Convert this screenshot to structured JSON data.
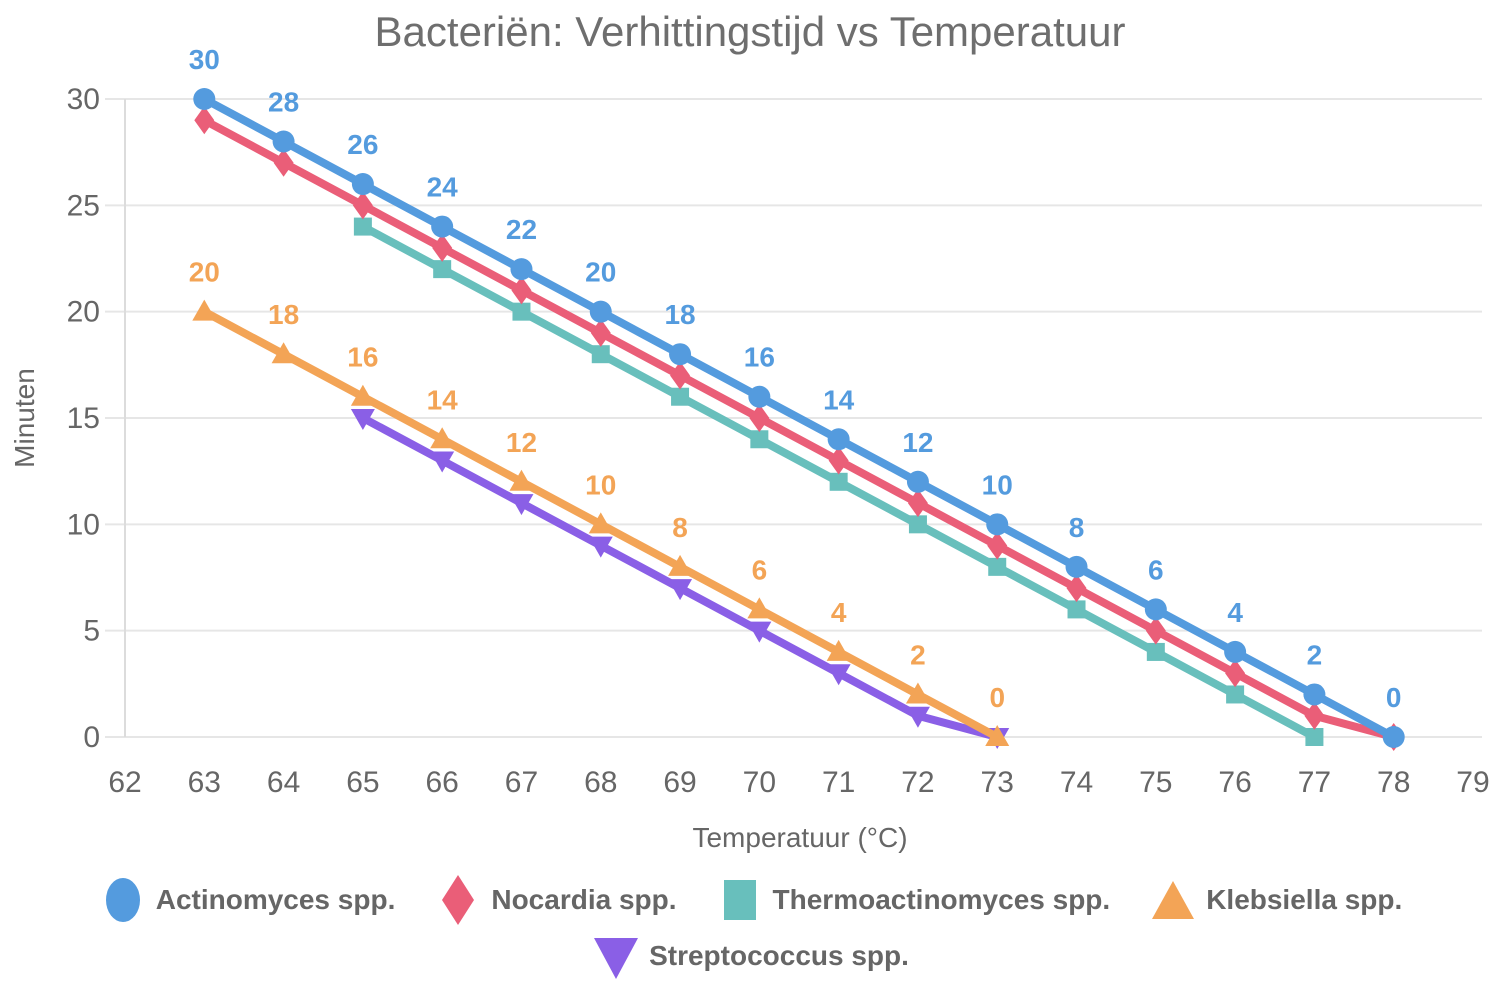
{
  "chart_data": {
    "type": "line",
    "title": "Bacteriën: Verhittingstijd vs Temperatuur",
    "xlabel": "Temperatuur (°C)",
    "ylabel": "Minuten",
    "xlim": [
      62,
      79
    ],
    "ylim": [
      0,
      30
    ],
    "x_ticks": [
      62,
      63,
      64,
      65,
      66,
      67,
      68,
      69,
      70,
      71,
      72,
      73,
      74,
      75,
      76,
      77,
      78,
      79
    ],
    "y_ticks": [
      0,
      5,
      10,
      15,
      20,
      25,
      30
    ],
    "grid": "horizontal",
    "legend_position": "bottom",
    "z_order": [
      2,
      4,
      3,
      1,
      0
    ],
    "series": [
      {
        "name": "Actinomyces spp.",
        "color": "#549BDE",
        "marker": "circle",
        "show_labels": true,
        "x": [
          63,
          64,
          65,
          66,
          67,
          68,
          69,
          70,
          71,
          72,
          73,
          74,
          75,
          76,
          77,
          78
        ],
        "values": [
          30,
          28,
          26,
          24,
          22,
          20,
          18,
          16,
          14,
          12,
          10,
          8,
          6,
          4,
          2,
          0
        ]
      },
      {
        "name": "Nocardia spp.",
        "color": "#EA5E78",
        "marker": "diamond",
        "show_labels": false,
        "x": [
          63,
          64,
          65,
          66,
          67,
          68,
          69,
          70,
          71,
          72,
          73,
          74,
          75,
          76,
          77,
          78
        ],
        "values": [
          29,
          27,
          25,
          23,
          21,
          19,
          17,
          15,
          13,
          11,
          9,
          7,
          5,
          3,
          1,
          0
        ]
      },
      {
        "name": "Thermoactinomyces spp.",
        "color": "#68BFBC",
        "marker": "square",
        "show_labels": false,
        "x": [
          65,
          66,
          67,
          68,
          69,
          70,
          71,
          72,
          73,
          74,
          75,
          76,
          77
        ],
        "values": [
          24,
          22,
          20,
          18,
          16,
          14,
          12,
          10,
          8,
          6,
          4,
          2,
          0
        ]
      },
      {
        "name": "Klebsiella spp.",
        "color": "#F3A456",
        "marker": "triangle-up",
        "show_labels": true,
        "x": [
          63,
          64,
          65,
          66,
          67,
          68,
          69,
          70,
          71,
          72,
          73
        ],
        "values": [
          20,
          18,
          16,
          14,
          12,
          10,
          8,
          6,
          4,
          2,
          0
        ]
      },
      {
        "name": "Streptococcus spp.",
        "color": "#8A5FE6",
        "marker": "triangle-down",
        "show_labels": false,
        "x": [
          65,
          66,
          67,
          68,
          69,
          70,
          71,
          72,
          73
        ],
        "values": [
          15,
          13,
          11,
          9,
          7,
          5,
          3,
          1,
          0
        ]
      }
    ]
  },
  "legend": {
    "rows": [
      [
        0,
        1,
        2,
        3
      ],
      [
        4
      ]
    ]
  },
  "style_colors": {
    "title_text": "#6e6e6e",
    "axis_text": "#666666",
    "legend_text": "#666666",
    "gridline": "#e6e6e6",
    "axis_spine": "#dcdcdc"
  }
}
